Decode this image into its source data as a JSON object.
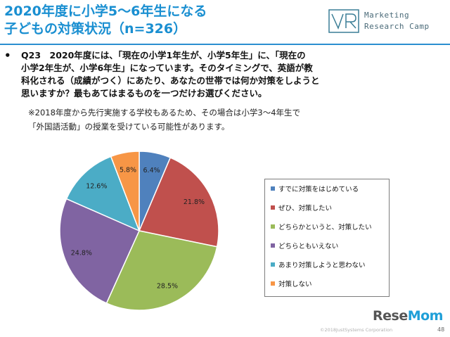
{
  "title": {
    "line1": "2020年度に小学5～6年生になる",
    "line2": "子どもの対策状況（n=326）"
  },
  "logo": {
    "line1": "Marketing",
    "line2": "Research Camp"
  },
  "question": {
    "bullet": "•",
    "lines": [
      "Q23　2020年度には、「現在の小学1年生が、小学5年生」に、「現在の",
      "小学2年生が、小学6年生」になっています。そのタイミングで、英語が教",
      "科化される（成績がつく）にあたり、あなたの世帯では何か対策をしようと",
      "思いますか？最もあてはまるものを一つだけお選びください。"
    ]
  },
  "note": {
    "lines": [
      "※2018年度から先行実施する学校もあるため、その場合は小学3～4年生で",
      "「外国語活動」の授業を受けている可能性があります。"
    ]
  },
  "chart_data": {
    "type": "pie",
    "title": "",
    "categories": [
      "すでに対策をはじめている",
      "ぜひ、対策したい",
      "どちらかというと、対策したい",
      "どちらともいえない",
      "あまり対策しようと思わない",
      "対策しない"
    ],
    "values": [
      6.4,
      21.8,
      28.5,
      24.8,
      12.6,
      5.8
    ],
    "labels": [
      "6.4%",
      "21.8%",
      "28.5%",
      "24.8%",
      "12.6%",
      "5.8%"
    ],
    "colors": [
      "#4f81bd",
      "#c0504d",
      "#9bbb59",
      "#8064a2",
      "#4bacc6",
      "#f79646"
    ],
    "legend": "right",
    "start": "12 o'clock, clockwise"
  },
  "footer": {
    "copyright": "©2018JustSystems Corporation",
    "page": "48",
    "watermark_main": "Rese",
    "watermark_accent": "Mom"
  }
}
